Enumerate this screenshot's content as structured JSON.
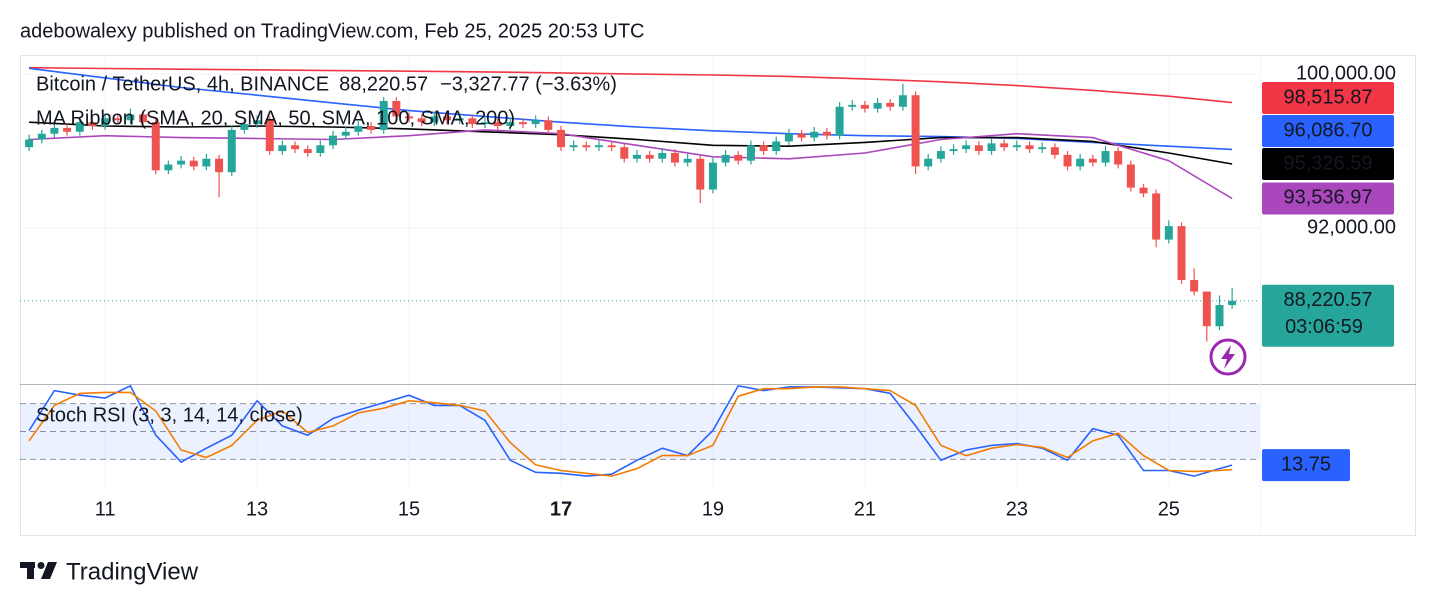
{
  "header": {
    "byline": "adebowalexy published on TradingView.com, Feb 25, 2025 20:53 UTC"
  },
  "footer": {
    "brand": "TradingView"
  },
  "chart_data": [
    {
      "type": "candlestick",
      "symbol": "Bitcoin / TetherUS, 4h, BINANCE",
      "legend_price": "88,220.57",
      "change": "−3,327.77 (−3.63%)",
      "up_color": "#26a69a",
      "down_color": "#ef5350",
      "xlim": [
        9.88,
        26.2
      ],
      "xticks": [
        11,
        13,
        15,
        17,
        19,
        21,
        23,
        25
      ],
      "xticks_bold": [
        17
      ],
      "ylim": [
        83950,
        100990
      ],
      "yticks": [
        {
          "value": 100000,
          "label": "100,000.00"
        },
        {
          "value": 92000,
          "label": "92,000.00"
        }
      ],
      "grid": true,
      "current_price_label": "88,220.57",
      "countdown": "03:06:59",
      "x": [
        10,
        10.167,
        10.333,
        10.5,
        10.667,
        10.833,
        11,
        11.167,
        11.333,
        11.5,
        11.667,
        11.833,
        12,
        12.167,
        12.333,
        12.5,
        12.667,
        12.833,
        13,
        13.167,
        13.333,
        13.5,
        13.667,
        13.833,
        14,
        14.167,
        14.333,
        14.5,
        14.667,
        14.833,
        15,
        15.167,
        15.333,
        15.5,
        15.667,
        15.833,
        16,
        16.167,
        16.333,
        16.5,
        16.667,
        16.833,
        17,
        17.167,
        17.333,
        17.5,
        17.667,
        17.833,
        18,
        18.167,
        18.333,
        18.5,
        18.667,
        18.833,
        19,
        19.167,
        19.333,
        19.5,
        19.667,
        19.833,
        20,
        20.167,
        20.333,
        20.5,
        20.667,
        20.833,
        21,
        21.167,
        21.333,
        21.5,
        21.667,
        21.833,
        22,
        22.167,
        22.333,
        22.5,
        22.667,
        22.833,
        23,
        23.167,
        23.333,
        23.5,
        23.667,
        23.833,
        24,
        24.167,
        24.333,
        24.5,
        24.667,
        24.833,
        25,
        25.167,
        25.333,
        25.5,
        25.667,
        25.833
      ],
      "candles": [
        [
          96200,
          96850,
          96000,
          96600
        ],
        [
          96600,
          97100,
          96400,
          96900
        ],
        [
          96900,
          97450,
          96700,
          97200
        ],
        [
          97200,
          97400,
          96800,
          97000
        ],
        [
          97000,
          97750,
          96800,
          97500
        ],
        [
          97500,
          97700,
          97100,
          97300
        ],
        [
          97300,
          97950,
          97100,
          97700
        ],
        [
          97700,
          97900,
          97400,
          97600
        ],
        [
          97600,
          98200,
          97400,
          97900
        ],
        [
          97900,
          98100,
          97300,
          97500
        ],
        [
          97500,
          97700,
          94800,
          95000
        ],
        [
          95000,
          95500,
          94800,
          95300
        ],
        [
          95300,
          95750,
          95100,
          95500
        ],
        [
          95500,
          95700,
          95000,
          95200
        ],
        [
          95200,
          95850,
          95000,
          95600
        ],
        [
          95600,
          95800,
          93600,
          94900
        ],
        [
          94900,
          97300,
          94700,
          97100
        ],
        [
          97100,
          97650,
          96900,
          97400
        ],
        [
          97400,
          97850,
          97200,
          97600
        ],
        [
          97600,
          97800,
          95800,
          96000
        ],
        [
          96000,
          96550,
          95800,
          96300
        ],
        [
          96300,
          96500,
          95900,
          96100
        ],
        [
          96100,
          96300,
          95700,
          95900
        ],
        [
          95900,
          96550,
          95700,
          96300
        ],
        [
          96300,
          97050,
          96100,
          96800
        ],
        [
          96800,
          97250,
          96600,
          97000
        ],
        [
          97000,
          97550,
          96800,
          97300
        ],
        [
          97300,
          97500,
          96900,
          97100
        ],
        [
          97100,
          98800,
          96900,
          98600
        ],
        [
          98600,
          98800,
          97600,
          97800
        ],
        [
          97800,
          98000,
          97500,
          97700
        ],
        [
          97700,
          97900,
          97300,
          97500
        ],
        [
          97500,
          98050,
          97300,
          97800
        ],
        [
          97800,
          98000,
          97400,
          97600
        ],
        [
          97600,
          97950,
          97400,
          97700
        ],
        [
          97700,
          97900,
          97200,
          97400
        ],
        [
          97400,
          97750,
          97200,
          97500
        ],
        [
          97500,
          97700,
          97100,
          97300
        ],
        [
          97300,
          97750,
          97100,
          97500
        ],
        [
          97500,
          97700,
          97200,
          97400
        ],
        [
          97400,
          97850,
          97200,
          97600
        ],
        [
          97600,
          97800,
          96900,
          97100
        ],
        [
          97100,
          97300,
          96000,
          96200
        ],
        [
          96200,
          96550,
          96000,
          96300
        ],
        [
          96300,
          96500,
          96000,
          96200
        ],
        [
          96200,
          96550,
          96000,
          96300
        ],
        [
          96300,
          96500,
          96000,
          96200
        ],
        [
          96200,
          96400,
          95400,
          95600
        ],
        [
          95600,
          96050,
          95400,
          95800
        ],
        [
          95800,
          96000,
          95400,
          95600
        ],
        [
          95600,
          96150,
          95400,
          95900
        ],
        [
          95900,
          96100,
          95200,
          95400
        ],
        [
          95400,
          95850,
          95200,
          95600
        ],
        [
          95600,
          95800,
          93300,
          94000
        ],
        [
          94000,
          95650,
          93800,
          95400
        ],
        [
          95400,
          96050,
          95200,
          95800
        ],
        [
          95800,
          96000,
          95300,
          95500
        ],
        [
          95500,
          96550,
          95300,
          96300
        ],
        [
          96300,
          96500,
          95800,
          96000
        ],
        [
          96000,
          96750,
          95800,
          96500
        ],
        [
          96500,
          97150,
          96300,
          96900
        ],
        [
          96900,
          97100,
          96500,
          96700
        ],
        [
          96700,
          97250,
          96500,
          97000
        ],
        [
          97000,
          97200,
          96600,
          96800
        ],
        [
          96800,
          98550,
          96600,
          98300
        ],
        [
          98300,
          98650,
          98100,
          98400
        ],
        [
          98400,
          98600,
          98000,
          98200
        ],
        [
          98200,
          98750,
          98000,
          98500
        ],
        [
          98500,
          98700,
          98100,
          98300
        ],
        [
          98300,
          99500,
          98100,
          98900
        ],
        [
          98900,
          99100,
          94800,
          95200
        ],
        [
          95200,
          95850,
          95000,
          95600
        ],
        [
          95600,
          96250,
          95400,
          96000
        ],
        [
          96000,
          96350,
          95800,
          96100
        ],
        [
          96100,
          96550,
          95900,
          96300
        ],
        [
          96300,
          96500,
          95800,
          96000
        ],
        [
          96000,
          96650,
          95800,
          96400
        ],
        [
          96400,
          96600,
          96000,
          96200
        ],
        [
          96200,
          96550,
          96000,
          96300
        ],
        [
          96300,
          96500,
          95900,
          96100
        ],
        [
          96100,
          96450,
          95900,
          96200
        ],
        [
          96200,
          96400,
          95600,
          95800
        ],
        [
          95800,
          96000,
          95000,
          95200
        ],
        [
          95200,
          95850,
          95000,
          95600
        ],
        [
          95600,
          95800,
          95200,
          95400
        ],
        [
          95400,
          96250,
          95200,
          96000
        ],
        [
          96000,
          96200,
          95100,
          95300
        ],
        [
          95300,
          95500,
          93900,
          94100
        ],
        [
          94100,
          94300,
          93600,
          93800
        ],
        [
          93800,
          94000,
          91000,
          91400
        ],
        [
          91400,
          92400,
          91200,
          92100
        ],
        [
          92100,
          92300,
          89100,
          89300
        ],
        [
          89300,
          89900,
          88500,
          88700
        ],
        [
          88700,
          88700,
          86100,
          86900
        ],
        [
          86900,
          88500,
          86700,
          88000
        ],
        [
          88000,
          88900,
          87800,
          88220.57
        ]
      ],
      "ribbon": {
        "title": "MA Ribbon (SMA, 20, SMA, 50, SMA, 100, SMA, 200)",
        "x": [
          10,
          11,
          12,
          13,
          14,
          15,
          16,
          17,
          18,
          19,
          20,
          21,
          22,
          23,
          24,
          25,
          25.833
        ],
        "series": [
          {
            "color": "#f23645",
            "last_label": "98,515.87",
            "values": [
              100330,
              100290,
              100250,
              100220,
              100180,
              100150,
              100110,
              100060,
              100000,
              99950,
              99880,
              99750,
              99600,
              99400,
              99150,
              98850,
              98515.87
            ]
          },
          {
            "color": "#2962ff",
            "last_label": "96,086.70",
            "values": [
              100300,
              99800,
              99300,
              98900,
              98500,
              98100,
              97800,
              97500,
              97250,
              97050,
              96900,
              96800,
              96750,
              96650,
              96450,
              96250,
              96086.7
            ]
          },
          {
            "color": "#000000",
            "last_label": "95,326.59",
            "values": [
              97500,
              97300,
              97250,
              97300,
              97250,
              97150,
              97000,
              96850,
              96600,
              96300,
              96250,
              96450,
              96700,
              96700,
              96500,
              95900,
              95326.59
            ]
          },
          {
            "color": "#ab47bc",
            "last_label": "93,536.97",
            "values": [
              96600,
              96800,
              96700,
              96650,
              96600,
              96800,
              97100,
              96900,
              96300,
              95700,
              95600,
              95900,
              96600,
              96900,
              96700,
              95500,
              93536.97
            ]
          }
        ]
      }
    },
    {
      "type": "line",
      "title": "Stoch RSI (3, 3, 14, 14, close)",
      "xlim": [
        9.88,
        26.2
      ],
      "ylim": [
        -13,
        100
      ],
      "levels": [
        80,
        50,
        20
      ],
      "band_color": "#2962ff",
      "x": [
        10,
        10.333,
        10.667,
        11,
        11.333,
        11.667,
        12,
        12.333,
        12.667,
        13,
        13.333,
        13.667,
        14,
        14.333,
        14.667,
        15,
        15.333,
        15.667,
        16,
        16.333,
        16.667,
        17,
        17.333,
        17.667,
        18,
        18.333,
        18.667,
        19,
        19.333,
        19.667,
        20,
        20.333,
        20.667,
        21,
        21.333,
        21.667,
        22,
        22.333,
        22.667,
        23,
        23.333,
        23.667,
        24,
        24.333,
        24.667,
        25,
        25.333,
        25.667,
        25.833
      ],
      "series": [
        {
          "color": "#2962ff",
          "last_label": "13.75",
          "values": [
            51,
            94,
            89,
            86,
            99,
            46,
            17,
            32,
            46,
            83,
            56,
            46,
            64,
            73,
            81,
            89,
            78,
            78,
            62,
            19,
            6,
            5,
            2,
            4,
            19,
            32,
            24,
            51,
            99,
            94,
            98,
            98,
            97,
            96,
            91,
            56,
            19,
            30,
            35,
            37,
            32,
            19,
            53,
            46,
            8,
            8,
            2,
            10,
            13.75
          ]
        },
        {
          "color": "#f57c00",
          "values": [
            40,
            78,
            91,
            92,
            92,
            72,
            30,
            22,
            35,
            62,
            72,
            49,
            56,
            70,
            75,
            83,
            81,
            78,
            72,
            38,
            14,
            8,
            5,
            2,
            10,
            24,
            24,
            35,
            88,
            96,
            96,
            98,
            98,
            96,
            94,
            78,
            35,
            24,
            32,
            36,
            33,
            22,
            40,
            48,
            24,
            8,
            7,
            8,
            9
          ]
        }
      ]
    }
  ]
}
